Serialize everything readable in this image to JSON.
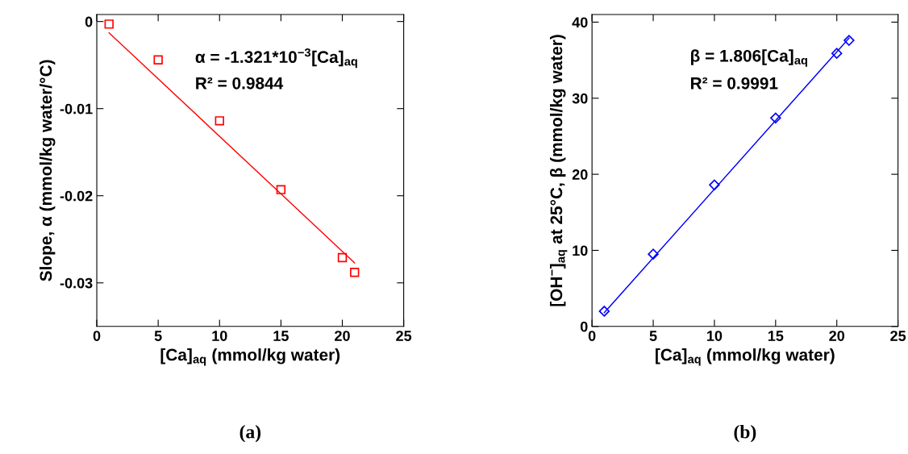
{
  "chart_data": [
    {
      "type": "scatter",
      "subtitle": "(a)",
      "xlabel": "[Ca]$_{aq}$ (mmol/kg water)",
      "ylabel": "Slope, α (mmol/kg water/°C)",
      "annotations": [
        "α = -1.321*10$^{−3}$[Ca]$_{aq}$",
        "R² = 0.9844"
      ],
      "xlim": [
        0,
        25
      ],
      "xticks": [
        0,
        5,
        10,
        15,
        20,
        25
      ],
      "ylim": [
        -0.035,
        0.0008
      ],
      "yticks": [
        0,
        {
          "value": -0.01,
          "label": "-0.01"
        },
        {
          "value": -0.02,
          "label": "-0.02"
        },
        {
          "value": -0.03,
          "label": "-0.03"
        }
      ],
      "grid": false,
      "legend": false,
      "series": [
        {
          "marker": "square",
          "color": "#ff0000",
          "x": [
            1,
            5,
            10,
            15,
            20,
            21
          ],
          "values": [
            -0.0003,
            -0.0044,
            -0.0114,
            -0.0193,
            -0.0271,
            -0.0288
          ]
        },
        {
          "type": "line",
          "marker": "none",
          "line_style": "solid",
          "color": "#ff0000",
          "x": [
            1,
            21
          ],
          "values": [
            -0.0013,
            -0.0277
          ]
        }
      ]
    },
    {
      "type": "scatter",
      "subtitle": "(b)",
      "xlabel": "[Ca]$_{aq}$ (mmol/kg water)",
      "ylabel": "[OH$^{−}$]$_{aq}$ at 25°C, β (mmol/kg water)",
      "annotations": [
        "β = 1.806[Ca]$_{aq}$",
        "R² = 0.9991"
      ],
      "xlim": [
        0,
        25
      ],
      "xticks": [
        0,
        5,
        10,
        15,
        20,
        25
      ],
      "ylim": [
        0,
        41
      ],
      "yticks": [
        0,
        10,
        20,
        30,
        40
      ],
      "grid": false,
      "legend": false,
      "series": [
        {
          "marker": "diamond",
          "color": "#0000ff",
          "x": [
            1,
            5,
            10,
            15,
            20,
            21
          ],
          "values": [
            2.0,
            9.5,
            18.6,
            27.4,
            35.9,
            37.6
          ]
        },
        {
          "type": "line",
          "marker": "none",
          "line_style": "solid",
          "color": "#0000ff",
          "x": [
            1,
            21
          ],
          "values": [
            1.8,
            37.9
          ]
        }
      ]
    }
  ]
}
